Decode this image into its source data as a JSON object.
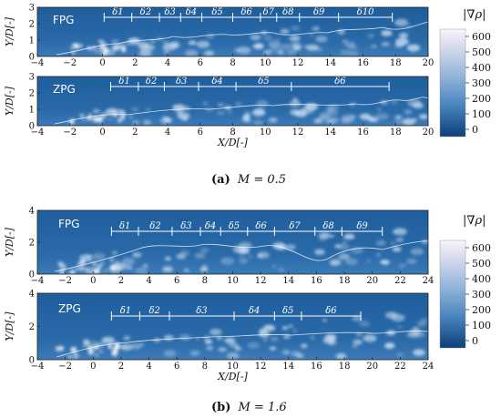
{
  "colors": {
    "field_dark": "#1f5f9d",
    "field_mid": "#3a78b5",
    "cb_top": "#f2f0f7",
    "cb_bottom": "#08306b",
    "annotation": "#ffffff"
  },
  "figure_a": {
    "caption_tag": "(a)",
    "caption_eq": "M = 0.5",
    "colorbar": {
      "label": "|∇ρ|",
      "ticks": [
        "600",
        "500",
        "400",
        "300",
        "200",
        "100",
        "0"
      ]
    },
    "panels": [
      {
        "tag": "FPG",
        "ylabel": "Y/D[-]",
        "yticks": [
          "3",
          "2",
          "1",
          "0"
        ],
        "xticks": [
          "−4",
          "−2",
          "0",
          "2",
          "4",
          "6",
          "8",
          "10",
          "12",
          "14",
          "16",
          "18",
          "20"
        ],
        "xlabel": "",
        "deltas": [
          "δ1",
          "δ2",
          "δ3",
          "δ4",
          "δ5",
          "δ6",
          "δ7",
          "δ8",
          "δ9",
          "δ10"
        ],
        "bounds": [
          0.1,
          1.8,
          3.5,
          4.8,
          6.1,
          8.0,
          9.7,
          10.7,
          12.1,
          14.5,
          17.8
        ]
      },
      {
        "tag": "ZPG",
        "ylabel": "Y/D[-]",
        "yticks": [
          "3",
          "2",
          "1",
          "0"
        ],
        "xticks": [
          "−4",
          "−2",
          "0",
          "2",
          "4",
          "6",
          "8",
          "10",
          "12",
          "14",
          "16",
          "18",
          "20"
        ],
        "xlabel": "X/D[-]",
        "deltas": [
          "δ1",
          "δ2",
          "δ3",
          "δ4",
          "δ5",
          "δ6"
        ],
        "bounds": [
          0.5,
          2.2,
          3.8,
          5.9,
          8.2,
          11.6,
          17.6
        ]
      }
    ]
  },
  "figure_b": {
    "caption_tag": "(b)",
    "caption_eq": "M = 1.6",
    "colorbar": {
      "label": "|∇ρ|",
      "ticks": [
        "600",
        "500",
        "400",
        "300",
        "200",
        "100",
        "0"
      ]
    },
    "panels": [
      {
        "tag": "FPG",
        "ylabel": "Y/D[-]",
        "yticks": [
          "4",
          "2",
          "0"
        ],
        "xticks": [
          "−4",
          "−2",
          "0",
          "2",
          "4",
          "6",
          "8",
          "10",
          "12",
          "14",
          "16",
          "18",
          "20",
          "22",
          "24"
        ],
        "xlabel": "",
        "deltas": [
          "δ1",
          "δ2",
          "δ3",
          "δ4",
          "δ5",
          "δ6",
          "δ7",
          "δ8",
          "δ9"
        ],
        "bounds": [
          1.5,
          3.5,
          6.0,
          8.1,
          9.6,
          11.6,
          13.6,
          16.6,
          18.6,
          21.6
        ]
      },
      {
        "tag": "ZPG",
        "ylabel": "Y/D[-]",
        "yticks": [
          "4",
          "2",
          "0"
        ],
        "xticks": [
          "−4",
          "−2",
          "0",
          "2",
          "4",
          "6",
          "8",
          "10",
          "12",
          "14",
          "16",
          "18",
          "20",
          "22",
          "24"
        ],
        "xlabel": "X/D[-]",
        "deltas": [
          "δ1",
          "δ2",
          "δ3",
          "δ4",
          "δ5",
          "δ6"
        ],
        "bounds": [
          1.5,
          3.6,
          5.8,
          10.6,
          13.6,
          15.6,
          20.0
        ]
      }
    ]
  }
}
